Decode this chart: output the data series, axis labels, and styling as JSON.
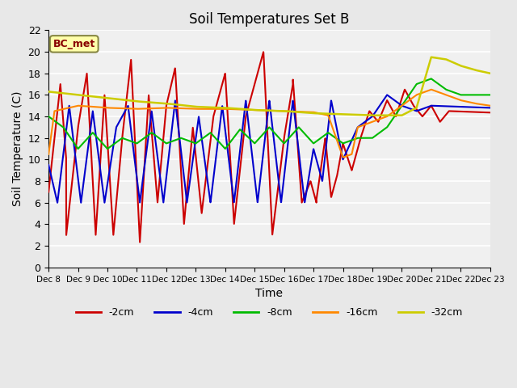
{
  "title": "Soil Temperatures Set B",
  "xlabel": "Time",
  "ylabel": "Soil Temperature (C)",
  "ylim": [
    0,
    22
  ],
  "yticks": [
    0,
    2,
    4,
    6,
    8,
    10,
    12,
    14,
    16,
    18,
    20,
    22
  ],
  "x_labels": [
    "Dec 8",
    "Dec 9",
    "Dec 10",
    "Dec 11",
    "Dec 12",
    "Dec 13",
    "Dec 14",
    "Dec 15",
    "Dec 16",
    "Dec 17",
    "Dec 18",
    "Dec 19",
    "Dec 20",
    "Dec 21",
    "Dec 22",
    "Dec 23"
  ],
  "legend_labels": [
    "-2cm",
    "-4cm",
    "-8cm",
    "-16cm",
    "-32cm"
  ],
  "legend_colors": [
    "#cc0000",
    "#0000cc",
    "#00bb00",
    "#ff8800",
    "#cccc00"
  ],
  "annotation_text": "BC_met",
  "annotation_bg": "#ffffaa",
  "annotation_fg": "#880000",
  "bg_color": "#e8e8e8",
  "plot_bg_color": "#f0f0f0",
  "line_colors": [
    "#cc0000",
    "#0000cc",
    "#00bb00",
    "#ff8800",
    "#cccc00"
  ],
  "line_widths": [
    1.5,
    1.5,
    1.5,
    1.5,
    1.8
  ]
}
